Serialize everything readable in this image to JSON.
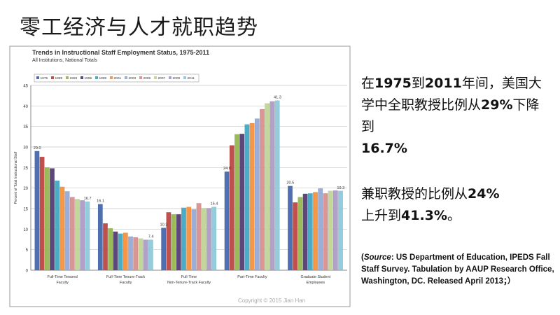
{
  "slide": {
    "title": "零工经济与人才就职趋势",
    "copyright": "Copyright © 2015 Jian Han"
  },
  "side_text": {
    "p1_a": "在",
    "p1_b": "1975",
    "p1_c": "到",
    "p1_d": "2011",
    "p1_e": "年间，美国大学中全职教授比例从",
    "p1_f": "29%",
    "p1_g": "下降到",
    "p1_h": "16.7%",
    "p2_a": "兼职教授的比例从",
    "p2_b": "24%",
    "p2_c": "上升到",
    "p2_d": "41.3%",
    "p2_e": "。",
    "source_italic": "Source",
    "source_rest": ": US Department of Education, IPEDS Fall Staff Survey. Tabulation by AAUP Research Office, Washington, DC. Released April 2013；）",
    "source_open": "("
  },
  "chart_data": {
    "type": "bar",
    "title": "Trends in Instructional Staff Employment Status, 1975-2011",
    "subtitle": "All Institutions, National Totals",
    "ylabel": "Percent of Total Instructional Staff",
    "ylim": [
      0,
      45
    ],
    "yticks": [
      0,
      5,
      10,
      15,
      20,
      25,
      30,
      35,
      40,
      45
    ],
    "grid": true,
    "legend_position": "top-left",
    "categories": [
      "Full-Time Tenured Faculty",
      "Full-Time Tenure-Track Faculty",
      "Full-Time Non-Tenure-Track Faculty",
      "Part-Time Faculty",
      "Graduate Student Employees"
    ],
    "series": [
      {
        "name": "1975",
        "color": "#4f6fb1",
        "values": [
          29.0,
          16.1,
          10.3,
          24.0,
          20.5
        ]
      },
      {
        "name": "1989",
        "color": "#c0504d",
        "values": [
          27.6,
          11.4,
          14.1,
          30.4,
          16.5
        ]
      },
      {
        "name": "1993",
        "color": "#9bbb59",
        "values": [
          25.0,
          10.2,
          13.6,
          33.1,
          17.8
        ]
      },
      {
        "name": "1995",
        "color": "#5d467a",
        "values": [
          24.8,
          9.4,
          13.6,
          33.2,
          18.6
        ]
      },
      {
        "name": "1999",
        "color": "#4bacc6",
        "values": [
          21.8,
          8.9,
          15.2,
          35.5,
          18.7
        ]
      },
      {
        "name": "2001",
        "color": "#f79646",
        "values": [
          20.3,
          9.1,
          15.4,
          35.8,
          19.0
        ]
      },
      {
        "name": "2003",
        "color": "#9aaed8",
        "values": [
          19.2,
          8.2,
          14.8,
          36.9,
          19.9
        ]
      },
      {
        "name": "2005",
        "color": "#da9694",
        "values": [
          17.8,
          8.0,
          16.3,
          39.2,
          18.7
        ]
      },
      {
        "name": "2007",
        "color": "#c4d79b",
        "values": [
          17.3,
          7.7,
          15.1,
          40.6,
          19.3
        ]
      },
      {
        "name": "2009",
        "color": "#b1a0c7",
        "values": [
          17.0,
          7.4,
          15.1,
          41.1,
          19.4
        ]
      },
      {
        "name": "2011",
        "color": "#93cddd",
        "values": [
          16.7,
          7.4,
          15.4,
          41.3,
          19.3
        ]
      }
    ],
    "data_labels": [
      {
        "category": 0,
        "series": 0,
        "text": "29.0"
      },
      {
        "category": 0,
        "series": 10,
        "text": "16.7"
      },
      {
        "category": 1,
        "series": 0,
        "text": "16.1"
      },
      {
        "category": 1,
        "series": 10,
        "text": "7.4"
      },
      {
        "category": 2,
        "series": 0,
        "text": "10.3"
      },
      {
        "category": 2,
        "series": 10,
        "text": "15.4"
      },
      {
        "category": 3,
        "series": 0,
        "text": "24.0"
      },
      {
        "category": 3,
        "series": 10,
        "text": "41.3"
      },
      {
        "category": 4,
        "series": 0,
        "text": "20.5"
      },
      {
        "category": 4,
        "series": 10,
        "text": "19.3"
      }
    ]
  }
}
